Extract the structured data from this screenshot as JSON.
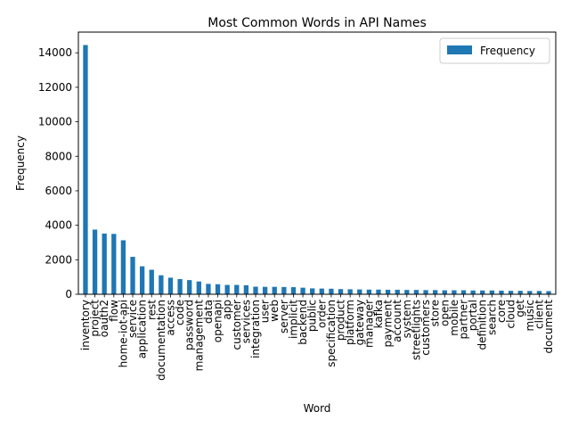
{
  "chart_data": {
    "type": "bar",
    "title": "Most Common Words in API Names",
    "xlabel": "Word",
    "ylabel": "Frequency",
    "ylim": [
      0,
      15200
    ],
    "yticks": [
      0,
      2000,
      4000,
      6000,
      8000,
      10000,
      12000,
      14000
    ],
    "grid": false,
    "legend": {
      "position": "top-right",
      "entries": [
        "Frequency"
      ]
    },
    "bar_color": "#1f77b4",
    "categories": [
      "inventory",
      "project",
      "oauth2",
      "flow",
      "home-iot-api",
      "service",
      "application",
      "rest",
      "documentation",
      "access",
      "code",
      "password",
      "management",
      "data",
      "openapi",
      "app",
      "customer",
      "services",
      "integration",
      "user",
      "web",
      "server",
      "implicit",
      "backend",
      "public",
      "order",
      "specification",
      "product",
      "platform",
      "gateway",
      "manager",
      "kafka",
      "payment",
      "account",
      "system",
      "streetlights",
      "customers",
      "store",
      "open",
      "mobile",
      "partner",
      "portal",
      "definition",
      "search",
      "core",
      "cloud",
      "get",
      "music",
      "client",
      "document"
    ],
    "series": [
      {
        "name": "Frequency",
        "values": [
          14450,
          3750,
          3520,
          3500,
          3130,
          2170,
          1620,
          1420,
          1100,
          960,
          880,
          820,
          740,
          600,
          580,
          540,
          540,
          520,
          440,
          430,
          430,
          420,
          410,
          380,
          340,
          330,
          320,
          300,
          290,
          280,
          270,
          270,
          260,
          260,
          250,
          250,
          240,
          240,
          230,
          230,
          230,
          220,
          220,
          220,
          210,
          200,
          200,
          190,
          190,
          180
        ]
      }
    ]
  }
}
